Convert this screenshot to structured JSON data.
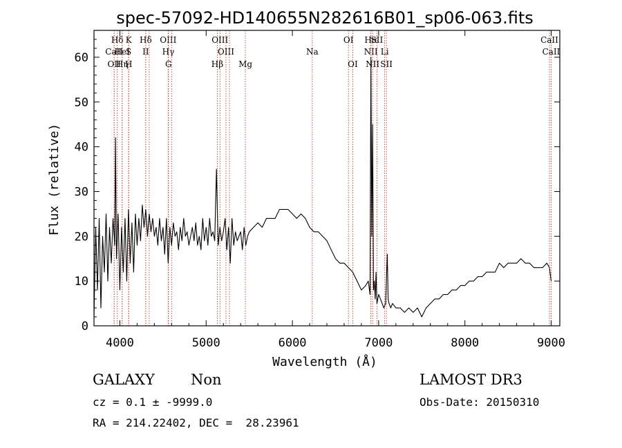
{
  "chart_data": {
    "type": "line",
    "title": "spec-57092-HD140655N282616B01_sp06-063.fits",
    "xlabel": "Wavelength (Å)",
    "ylabel": "Flux (relative)",
    "xlim": [
      3700,
      9100
    ],
    "ylim": [
      0,
      66
    ],
    "xticks": [
      4000,
      5000,
      6000,
      7000,
      8000,
      9000
    ],
    "yticks": [
      0,
      10,
      20,
      30,
      40,
      50,
      60
    ],
    "grid": false,
    "series": [
      {
        "color": "#000000",
        "x": [
          3700,
          3720,
          3740,
          3760,
          3780,
          3800,
          3820,
          3840,
          3860,
          3880,
          3900,
          3920,
          3940,
          3950,
          3960,
          3980,
          4000,
          4020,
          4040,
          4060,
          4080,
          4100,
          4120,
          4140,
          4160,
          4180,
          4200,
          4220,
          4240,
          4260,
          4280,
          4300,
          4320,
          4340,
          4360,
          4380,
          4400,
          4420,
          4440,
          4460,
          4480,
          4500,
          4520,
          4540,
          4560,
          4580,
          4600,
          4620,
          4640,
          4660,
          4680,
          4700,
          4720,
          4740,
          4760,
          4780,
          4800,
          4820,
          4840,
          4860,
          4880,
          4900,
          4920,
          4940,
          4960,
          4980,
          5000,
          5020,
          5040,
          5060,
          5080,
          5100,
          5120,
          5140,
          5160,
          5180,
          5200,
          5220,
          5240,
          5260,
          5280,
          5300,
          5320,
          5340,
          5360,
          5380,
          5400,
          5420,
          5440,
          5460,
          5480,
          5500,
          5550,
          5600,
          5650,
          5700,
          5750,
          5800,
          5850,
          5900,
          5950,
          6000,
          6050,
          6100,
          6150,
          6200,
          6250,
          6300,
          6350,
          6400,
          6450,
          6500,
          6550,
          6600,
          6650,
          6700,
          6750,
          6800,
          6850,
          6880,
          6900,
          6910,
          6920,
          6930,
          6940,
          6950,
          6960,
          6970,
          6980,
          7000,
          7020,
          7040,
          7060,
          7080,
          7100,
          7110,
          7120,
          7140,
          7160,
          7200,
          7250,
          7300,
          7350,
          7400,
          7450,
          7500,
          7550,
          7600,
          7650,
          7700,
          7750,
          7800,
          7850,
          7900,
          7950,
          8000,
          8050,
          8100,
          8150,
          8200,
          8250,
          8300,
          8350,
          8400,
          8450,
          8500,
          8550,
          8600,
          8650,
          8700,
          8750,
          8800,
          8850,
          8900,
          8950,
          8980,
          9000
        ],
        "y": [
          2,
          22,
          8,
          24,
          4,
          20,
          12,
          25,
          10,
          22,
          14,
          24,
          18,
          42,
          15,
          25,
          8,
          22,
          12,
          24,
          10,
          26,
          14,
          23,
          12,
          25,
          18,
          24,
          19,
          27,
          22,
          26,
          20,
          25,
          21,
          24,
          20,
          22,
          18,
          24,
          19,
          22,
          16,
          24,
          14,
          22,
          18,
          23,
          20,
          21,
          17,
          22,
          19,
          24,
          20,
          21,
          18,
          20,
          22,
          19,
          23,
          18,
          20,
          17,
          24,
          19,
          22,
          18,
          24,
          20,
          21,
          19,
          35,
          18,
          22,
          19,
          21,
          24,
          17,
          22,
          14,
          24,
          18,
          21,
          19,
          20,
          21,
          17,
          22,
          18,
          20,
          21,
          22,
          23,
          22,
          24,
          24,
          24,
          26,
          26,
          26,
          25,
          24,
          25,
          24,
          22,
          21,
          21,
          20,
          19,
          17,
          15,
          14,
          14,
          13,
          12,
          10,
          8,
          9,
          10,
          7,
          60,
          20,
          45,
          8,
          10,
          6,
          12,
          5,
          7,
          6,
          5,
          4,
          5,
          16,
          6,
          5,
          4,
          5,
          4,
          4,
          3,
          4,
          3,
          4,
          2,
          4,
          5,
          6,
          6,
          7,
          7,
          8,
          8,
          9,
          9,
          10,
          10,
          11,
          11,
          12,
          12,
          12,
          14,
          13,
          14,
          14,
          14,
          15,
          14,
          14,
          13,
          13,
          13,
          14,
          13,
          10
        ]
      }
    ],
    "line_markers": [
      {
        "w": 3934,
        "label": "CaII",
        "row": 2
      },
      {
        "w": 3934,
        "label": "OII",
        "row": 3
      },
      {
        "w": 3970,
        "label": "Hδ",
        "row": 1
      },
      {
        "w": 4026,
        "label": "HeI",
        "row": 2
      },
      {
        "w": 4026,
        "label": "Hη",
        "row": 3
      },
      {
        "w": 4102,
        "label": "K",
        "row": 1
      },
      {
        "w": 4102,
        "label": "S",
        "row": 2
      },
      {
        "w": 4102,
        "label": "H",
        "row": 3
      },
      {
        "w": 4300,
        "label": "Hδ",
        "row": 1
      },
      {
        "w": 4300,
        "label": "II",
        "row": 2
      },
      {
        "w": 4340,
        "label": "",
        "row": 0
      },
      {
        "w": 4560,
        "label": "OIII",
        "row": 1
      },
      {
        "w": 4561,
        "label": "Hγ",
        "row": 2
      },
      {
        "w": 4564,
        "label": "G",
        "row": 3
      },
      {
        "w": 4600,
        "label": "",
        "row": 0
      },
      {
        "w": 5130,
        "label": "Hβ",
        "row": 3
      },
      {
        "w": 5160,
        "label": "OIII",
        "row": 1
      },
      {
        "w": 5230,
        "label": "OIII",
        "row": 2
      },
      {
        "w": 5270,
        "label": "",
        "row": 0
      },
      {
        "w": 5455,
        "label": "Mg",
        "row": 3
      },
      {
        "w": 6230,
        "label": "Na",
        "row": 2
      },
      {
        "w": 6650,
        "label": "OI",
        "row": 1
      },
      {
        "w": 6700,
        "label": "OI",
        "row": 3
      },
      {
        "w": 6910,
        "label": "Hα",
        "row": 1
      },
      {
        "w": 6910,
        "label": "NII",
        "row": 2
      },
      {
        "w": 6930,
        "label": "NII",
        "row": 3
      },
      {
        "w": 6980,
        "label": "SII",
        "row": 1
      },
      {
        "w": 7070,
        "label": "Li",
        "row": 2
      },
      {
        "w": 7090,
        "label": "SII",
        "row": 3
      },
      {
        "w": 8980,
        "label": "CaII",
        "row": 1
      },
      {
        "w": 9000,
        "label": "CaII",
        "row": 2
      }
    ]
  },
  "info": {
    "object_class": "GALAXY",
    "subclass": "Non",
    "survey": "LAMOST DR3",
    "cz_line": "cz = 0.1 ± -9999.0",
    "obs_date_line": "Obs-Date: 20150310",
    "coords_line": "RA = 214.22402, DEC =  28.23961"
  }
}
